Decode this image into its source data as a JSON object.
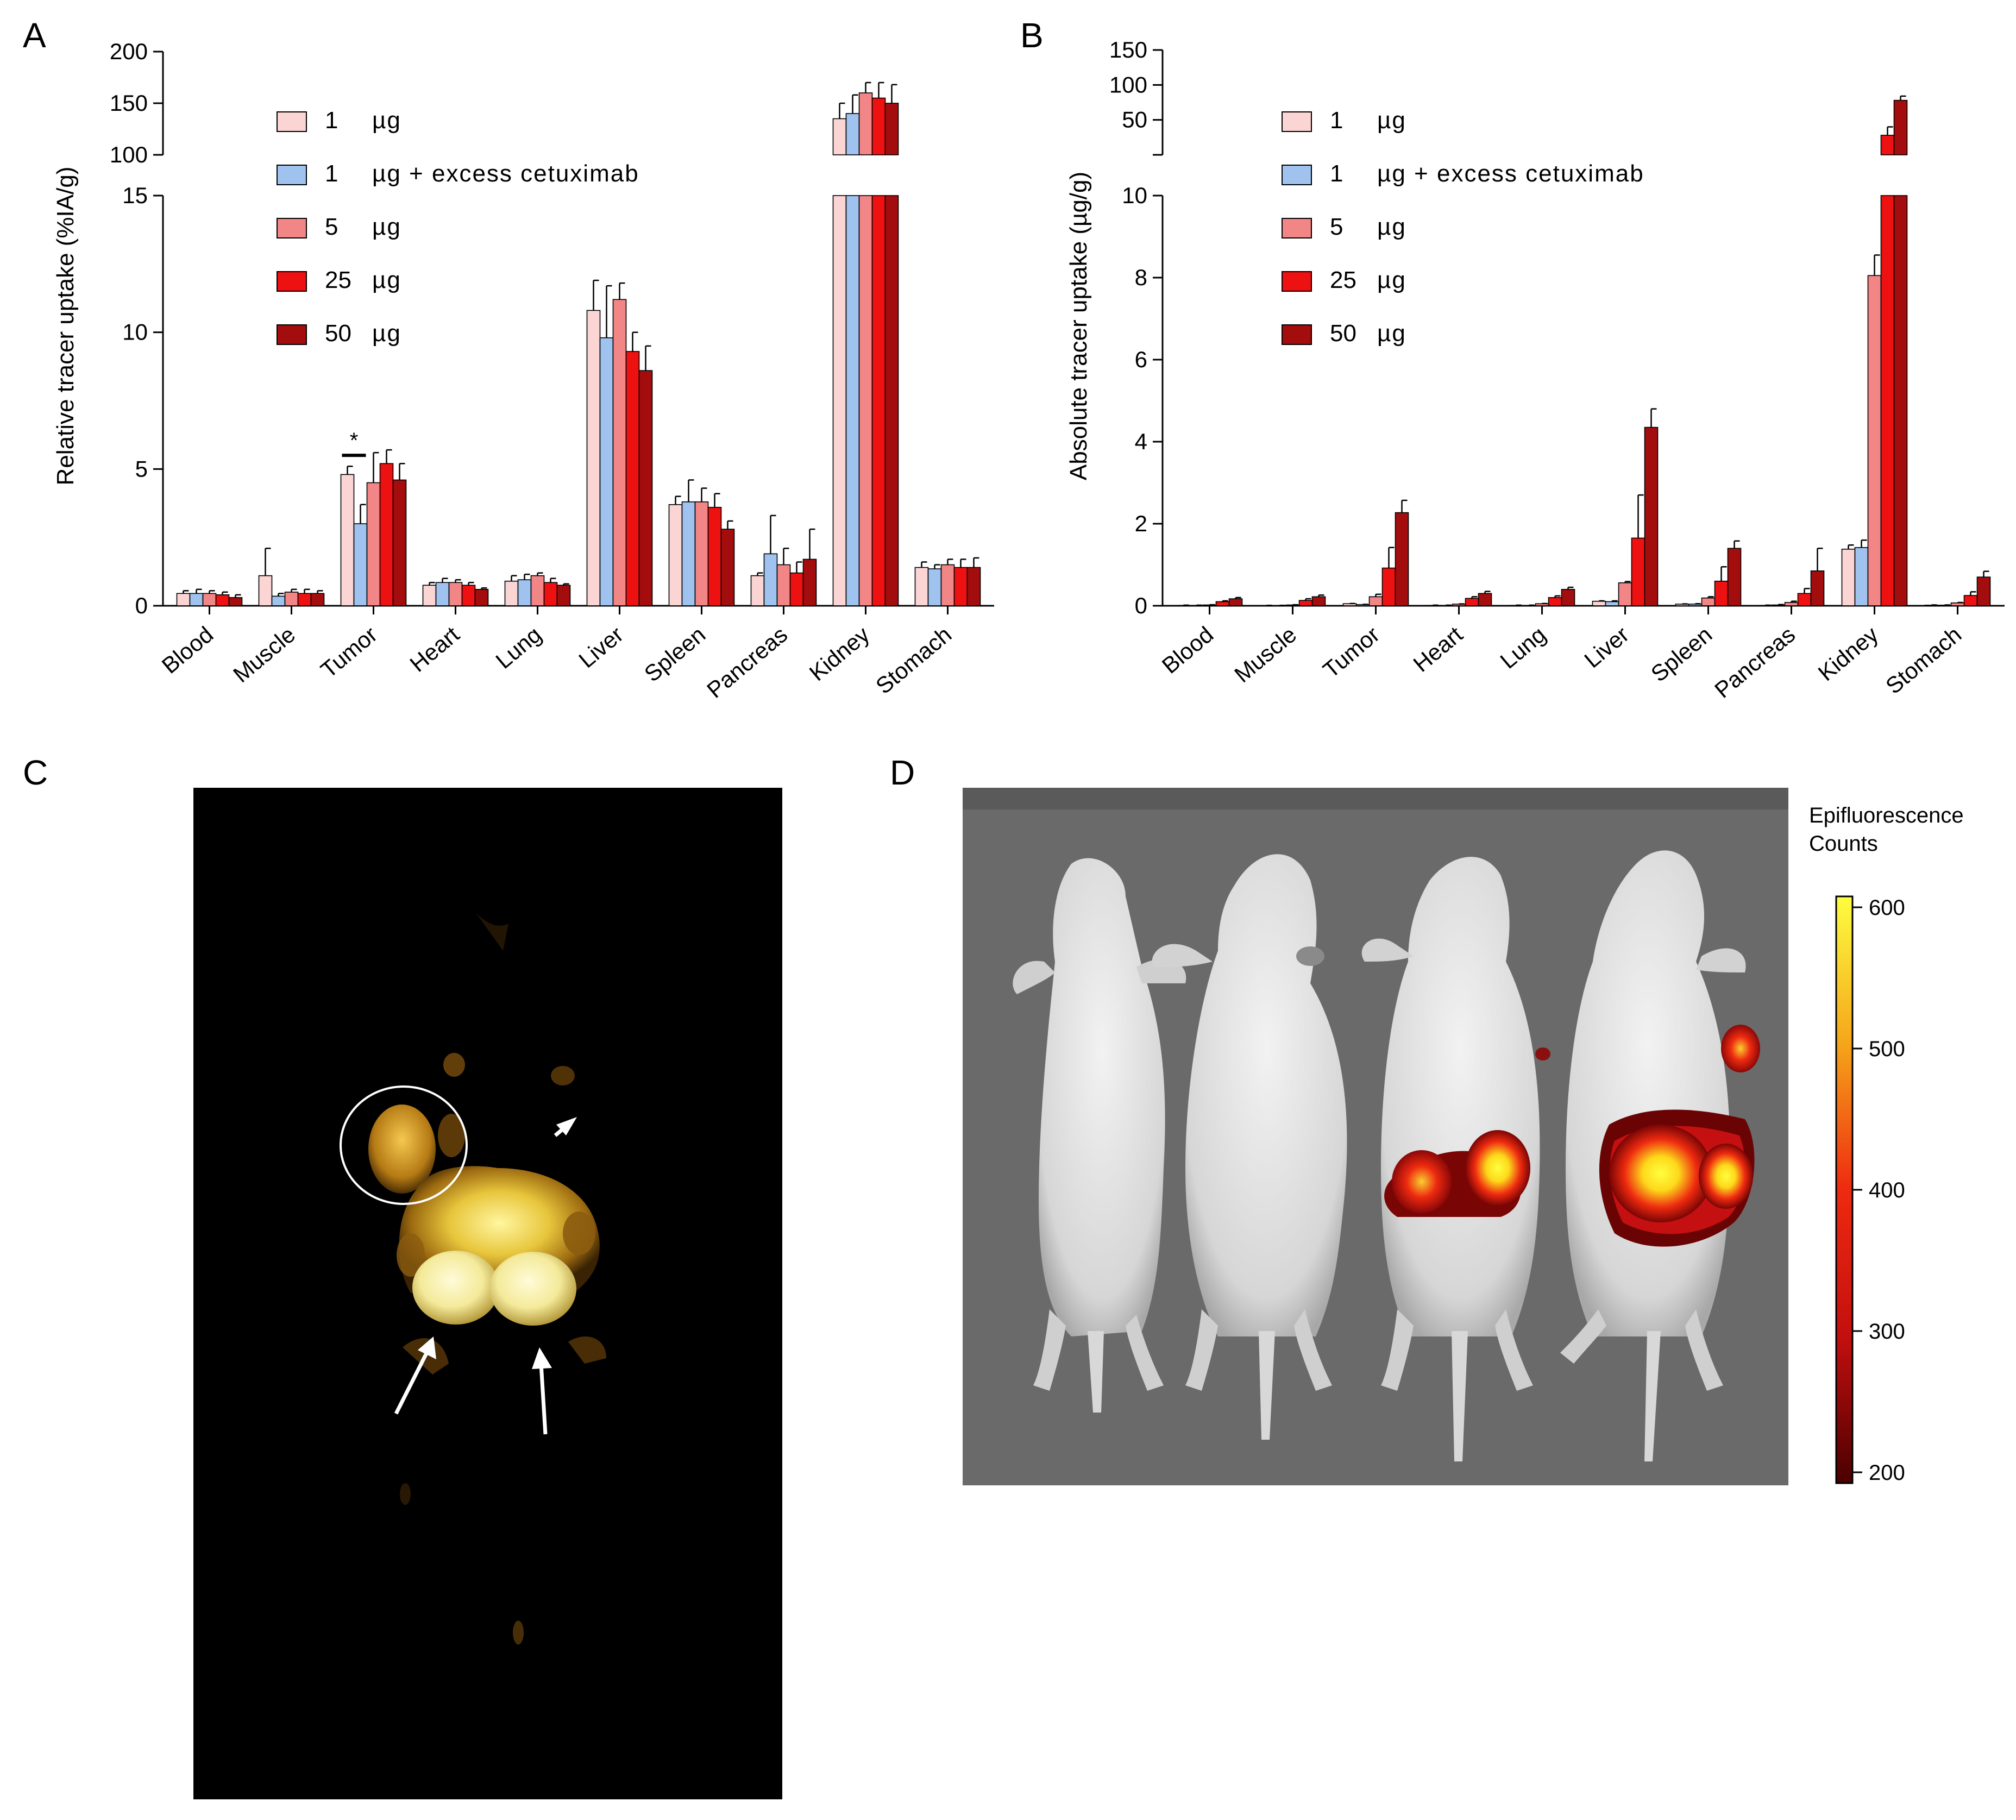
{
  "panels": {
    "a": "A",
    "b": "B",
    "c": "C",
    "d": "D"
  },
  "legend": [
    {
      "num": "1",
      "unit": "µg",
      "suffix": "",
      "color": "#fbd4d4"
    },
    {
      "num": "1",
      "unit": "µg",
      "suffix": " + excess cetuximab",
      "color": "#9fc3ee"
    },
    {
      "num": "5",
      "unit": "µg",
      "suffix": "",
      "color": "#f28585"
    },
    {
      "num": "25",
      "unit": "µg",
      "suffix": "",
      "color": "#ee1111"
    },
    {
      "num": "50",
      "unit": "µg",
      "suffix": "",
      "color": "#a30d0d"
    }
  ],
  "chart_data": [
    {
      "id": "A",
      "type": "bar",
      "ylabel": "Relative tracer uptake  (%IA/g)",
      "xlabel": "",
      "categories": [
        "Blood",
        "Muscle",
        "Tumor",
        "Heart",
        "Lung",
        "Liver",
        "Spleen",
        "Pancreas",
        "Kidney",
        "Stomach"
      ],
      "axis_break": {
        "lower_range": [
          0,
          15
        ],
        "upper_range": [
          100,
          200
        ]
      },
      "lower_ticks": [
        0,
        5,
        10,
        15
      ],
      "upper_ticks": [
        100,
        150,
        200
      ],
      "series": [
        {
          "name": "1 µg",
          "values": [
            0.45,
            1.1,
            4.8,
            0.75,
            0.9,
            10.8,
            3.7,
            1.1,
            135,
            1.4
          ],
          "errors": [
            0.1,
            1.0,
            0.3,
            0.1,
            0.2,
            1.1,
            0.3,
            0.1,
            15,
            0.2
          ]
        },
        {
          "name": "1 µg + excess cetuximab",
          "values": [
            0.45,
            0.35,
            3.0,
            0.85,
            0.95,
            9.8,
            3.8,
            1.9,
            140,
            1.35
          ],
          "errors": [
            0.15,
            0.1,
            0.7,
            0.15,
            0.2,
            1.9,
            0.8,
            1.4,
            18,
            0.15
          ]
        },
        {
          "name": "5 µg",
          "values": [
            0.45,
            0.5,
            4.5,
            0.85,
            1.1,
            11.2,
            3.8,
            1.5,
            160,
            1.5
          ],
          "errors": [
            0.1,
            0.1,
            1.1,
            0.1,
            0.1,
            0.6,
            0.5,
            0.6,
            10,
            0.2
          ]
        },
        {
          "name": "25 µg",
          "values": [
            0.4,
            0.45,
            5.2,
            0.75,
            0.85,
            9.3,
            3.6,
            1.2,
            155,
            1.4
          ],
          "errors": [
            0.1,
            0.15,
            0.5,
            0.1,
            0.15,
            0.7,
            0.5,
            0.4,
            15,
            0.3
          ]
        },
        {
          "name": "50 µg",
          "values": [
            0.3,
            0.45,
            4.6,
            0.6,
            0.75,
            8.6,
            2.8,
            1.7,
            150,
            1.4
          ],
          "errors": [
            0.1,
            0.1,
            0.6,
            0.05,
            0.05,
            0.9,
            0.3,
            1.1,
            18,
            0.35
          ]
        }
      ],
      "annotations": [
        {
          "text": "*",
          "category": "Tumor"
        }
      ]
    },
    {
      "id": "B",
      "type": "bar",
      "ylabel": "Absolute tracer uptake (µg/g)",
      "xlabel": "",
      "categories": [
        "Blood",
        "Muscle",
        "Tumor",
        "Heart",
        "Lung",
        "Liver",
        "Spleen",
        "Pancreas",
        "Kidney",
        "Stomach"
      ],
      "axis_break": {
        "lower_range": [
          0,
          10
        ],
        "upper_range": [
          0,
          150
        ]
      },
      "lower_ticks": [
        0,
        2,
        4,
        6,
        8,
        10
      ],
      "upper_ticks": [
        50,
        100,
        150
      ],
      "series": [
        {
          "name": "1 µg",
          "values": [
            0.01,
            0.005,
            0.05,
            0.01,
            0.01,
            0.11,
            0.04,
            0.01,
            1.38,
            0.015
          ],
          "errors": [
            0.005,
            0.005,
            0.005,
            0.005,
            0.005,
            0.01,
            0.005,
            0.005,
            0.1,
            0.005
          ]
        },
        {
          "name": "1 µg + excess cetuximab",
          "values": [
            0.01,
            0.005,
            0.03,
            0.01,
            0.01,
            0.1,
            0.04,
            0.02,
            1.42,
            0.015
          ],
          "errors": [
            0.005,
            0.005,
            0.005,
            0.005,
            0.005,
            0.02,
            0.01,
            0.01,
            0.18,
            0.005
          ]
        },
        {
          "name": "5 µg",
          "values": [
            0.02,
            0.02,
            0.22,
            0.04,
            0.05,
            0.56,
            0.19,
            0.08,
            8.05,
            0.07
          ],
          "errors": [
            0.005,
            0.005,
            0.06,
            0.005,
            0.005,
            0.03,
            0.03,
            0.03,
            0.5,
            0.01
          ]
        },
        {
          "name": "25 µg",
          "values": [
            0.1,
            0.13,
            0.92,
            0.18,
            0.2,
            1.65,
            0.6,
            0.3,
            28,
            0.25
          ],
          "errors": [
            0.02,
            0.04,
            0.5,
            0.04,
            0.04,
            1.05,
            0.35,
            0.12,
            12,
            0.09
          ]
        },
        {
          "name": "50 µg",
          "values": [
            0.17,
            0.22,
            2.27,
            0.3,
            0.4,
            4.35,
            1.4,
            0.85,
            78,
            0.7
          ],
          "errors": [
            0.03,
            0.04,
            0.3,
            0.05,
            0.05,
            0.45,
            0.18,
            0.55,
            6,
            0.14
          ]
        }
      ]
    }
  ],
  "colorbar": {
    "title_line1": "Epifluorescence",
    "title_line2": "Counts",
    "ticks": [
      600,
      500,
      400,
      300,
      200
    ],
    "stops": [
      "#fdfd40",
      "#f5a61a",
      "#ee2a10",
      "#c40f0f",
      "#4a0000"
    ]
  }
}
